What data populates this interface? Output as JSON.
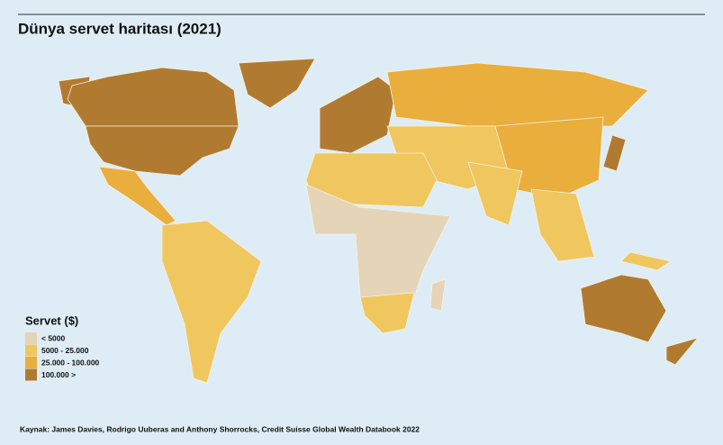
{
  "title": "Dünya servet haritası (2021)",
  "legend": {
    "title": "Servet ($)",
    "items": [
      {
        "label": "< 5000",
        "color": "#e5d4b8"
      },
      {
        "label": "5000 - 25.000",
        "color": "#f0c65e"
      },
      {
        "label": "25.000 - 100.000",
        "color": "#e9ae3b"
      },
      {
        "label": "100.000 >",
        "color": "#b07b31"
      }
    ]
  },
  "source": "Kaynak: James Davies, Rodrigo  Uuberas and Anthony Shorrocks, Credit Suisse Global Wealth Databook 2022"
}
